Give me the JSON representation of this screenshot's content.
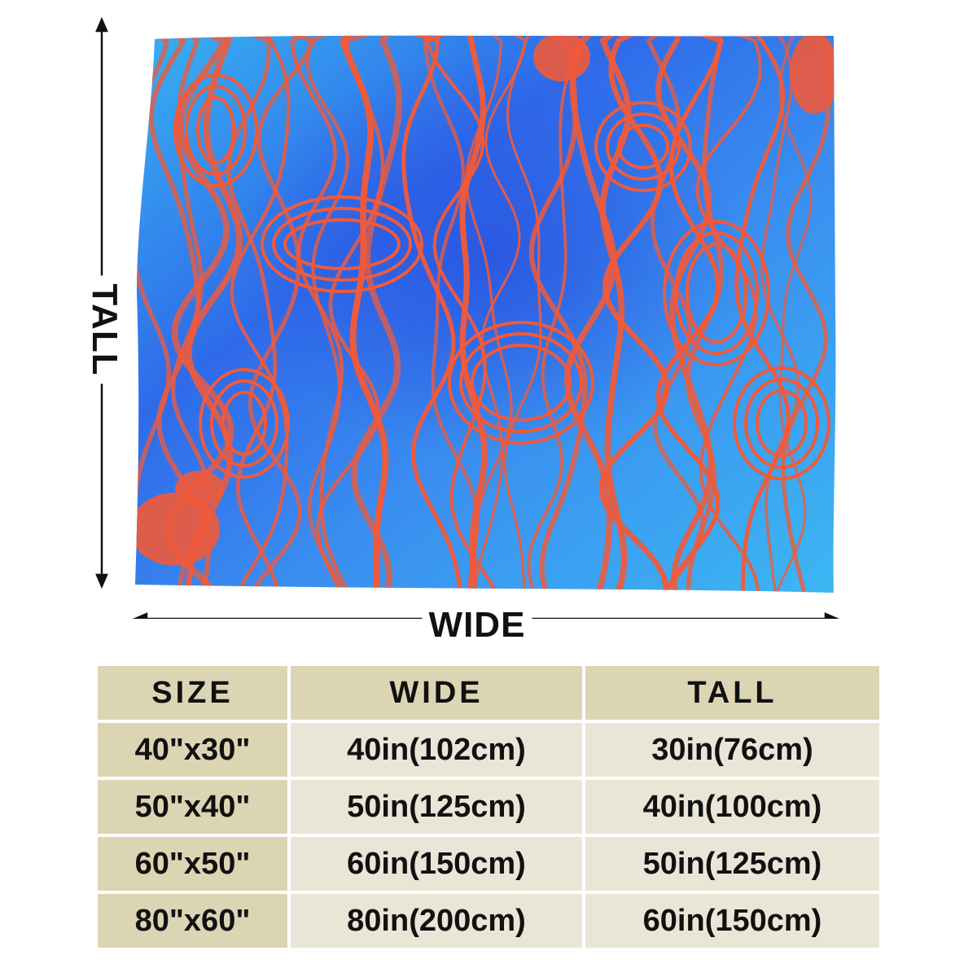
{
  "product": {
    "dimension_labels": {
      "tall": "TALL",
      "wide": "WIDE"
    },
    "colors": {
      "light_blue": "#37b0ee",
      "royal_blue": "#2f64e8",
      "orange": "#f05a3a",
      "header_bg": "#dcd5b3",
      "size_cell_bg": "#dcd5b3",
      "data_cell_bg": "#eae6d7"
    }
  },
  "size_table": {
    "headers": [
      "SIZE",
      "WIDE",
      "TALL"
    ],
    "rows": [
      {
        "size": "40\"x30\"",
        "wide": "40in(102cm)",
        "tall": "30in(76cm)"
      },
      {
        "size": "50\"x40\"",
        "wide": "50in(125cm)",
        "tall": "40in(100cm)"
      },
      {
        "size": "60\"x50\"",
        "wide": "60in(150cm)",
        "tall": "50in(125cm)"
      },
      {
        "size": "80\"x60\"",
        "wide": "80in(200cm)",
        "tall": "60in(150cm)"
      }
    ]
  }
}
